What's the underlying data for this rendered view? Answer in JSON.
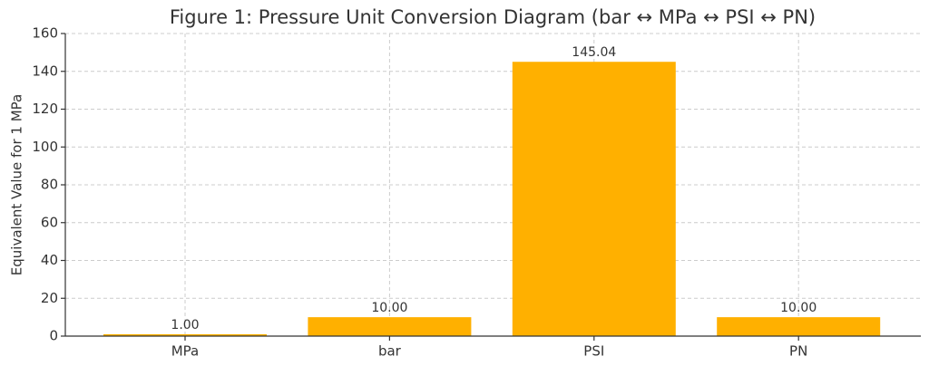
{
  "chart_data": {
    "type": "bar",
    "title": "Figure 1: Pressure Unit Conversion Diagram (bar ↔ MPa ↔ PSI ↔ PN)",
    "y_label": "Equivalent Value for 1 MPa",
    "categories": [
      "MPa",
      "bar",
      "PSI",
      "PN"
    ],
    "values": [
      1,
      10,
      145.04,
      10
    ],
    "value_labels": [
      "1.00",
      "10.00",
      "145.04",
      "10.00"
    ],
    "color": "#ffb000",
    "ylim": [
      0,
      160
    ],
    "yticks": [
      0,
      20,
      40,
      60,
      80,
      100,
      120,
      140,
      160
    ],
    "grid": true
  }
}
